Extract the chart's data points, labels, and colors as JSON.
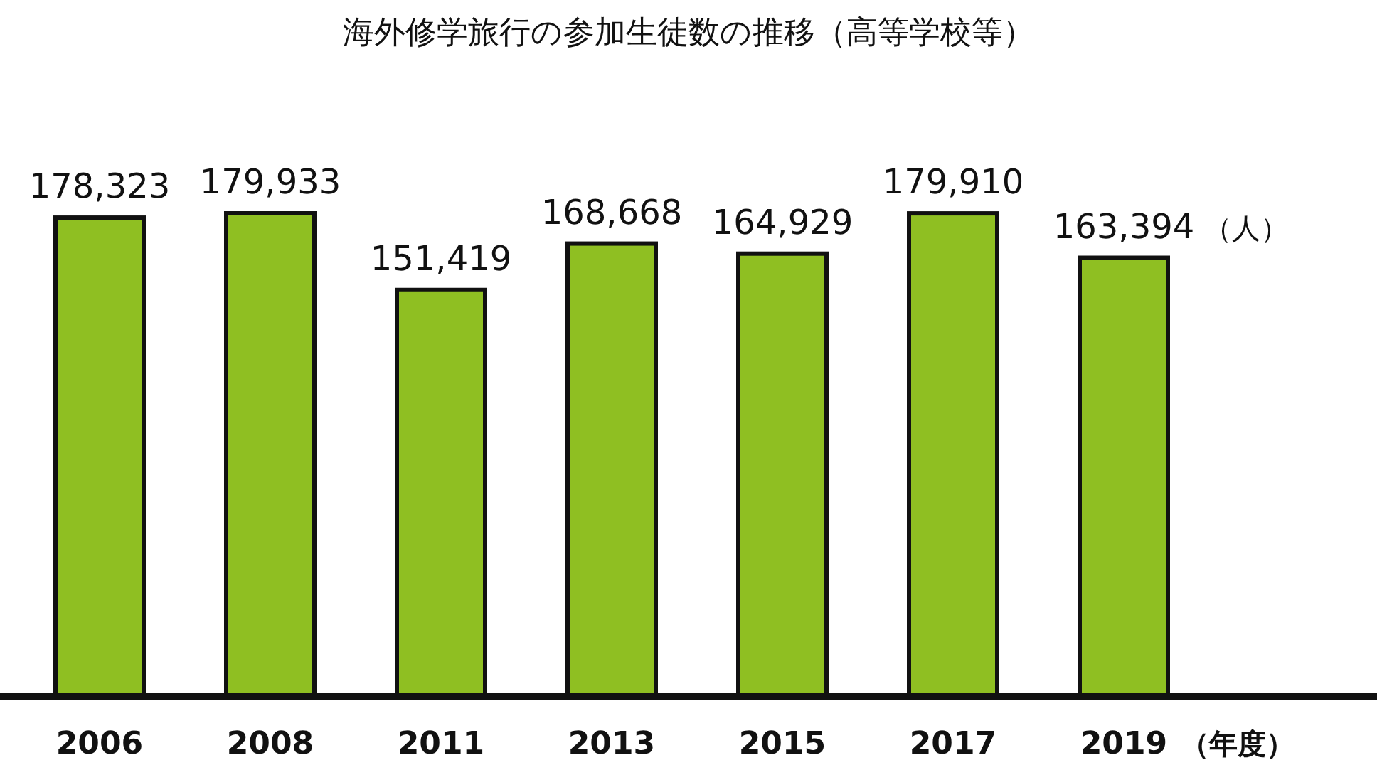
{
  "chart_data": {
    "type": "bar",
    "title": "海外修学旅行の参加生徒数の推移（高等学校等）",
    "ylabel": "（人）",
    "xlabel": "（年度）",
    "categories": [
      "2006",
      "2008",
      "2011",
      "2013",
      "2015",
      "2017",
      "2019"
    ],
    "values": [
      178323,
      179933,
      151419,
      168668,
      164929,
      179910,
      163394
    ],
    "value_labels": [
      "178,323",
      "179,933",
      "151,419",
      "168,668",
      "164,929",
      "179,910",
      "163,394"
    ],
    "color": "#8fbf22"
  }
}
